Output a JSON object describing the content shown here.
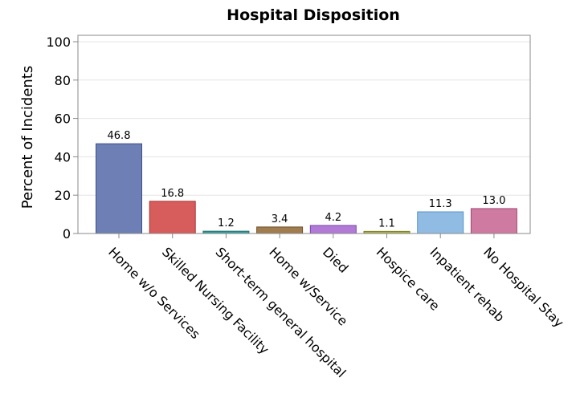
{
  "chart_data": {
    "type": "bar",
    "title": "Hospital Disposition",
    "xlabel": "",
    "ylabel": "Percent of Incidents",
    "ylim": [
      0,
      100
    ],
    "yticks": [
      "0",
      "20",
      "40",
      "60",
      "80",
      "100"
    ],
    "grid": true,
    "categories": [
      "Home w/o Services",
      "Skilled Nursing Facility",
      "Short-term general hospital",
      "Home w/Service",
      "Died",
      "Hospice care",
      "Inpatient rehab",
      "No Hospital Stay"
    ],
    "values": [
      46.8,
      16.8,
      1.2,
      3.4,
      4.2,
      1.1,
      11.3,
      13.0
    ],
    "value_labels": [
      "46.8",
      "16.8",
      "1.2",
      "3.4",
      "4.2",
      "1.1",
      "11.3",
      "13.0"
    ],
    "colors": [
      "#6d7fb5",
      "#d75c5c",
      "#3a9e9e",
      "#a07d4e",
      "#b07ad6",
      "#aab04a",
      "#90bce4",
      "#cf7aa0"
    ],
    "stroke_colors": [
      "#3c4f8a",
      "#a83434",
      "#1f6f6f",
      "#6e522e",
      "#7c46a8",
      "#7c8125",
      "#5a94c8",
      "#a04a72"
    ]
  }
}
